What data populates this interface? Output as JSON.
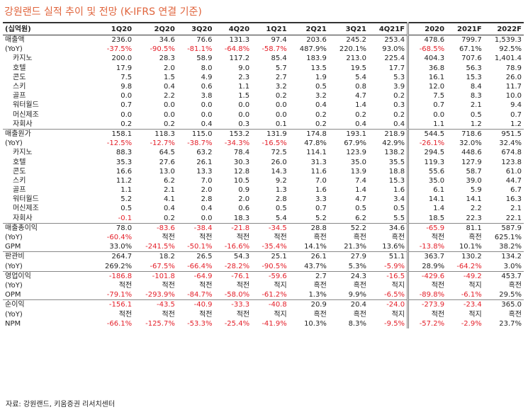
{
  "header": {
    "title": "강원랜드 실적 추이 및 전망 (K-IFRS 연결 기준)"
  },
  "table": {
    "columns": [
      "(십억원)",
      "1Q20",
      "2Q20",
      "3Q20",
      "4Q20",
      "1Q21",
      "2Q21",
      "3Q21",
      "4Q21F",
      "2020",
      "2021F",
      "2022F"
    ],
    "sections": [
      [
        [
          "매출액",
          "236.0",
          "34.6",
          "76.6",
          "131.3",
          "97.4",
          "203.6",
          "245.2",
          "253.4",
          "478.6",
          "799.7",
          "1,539.3"
        ],
        [
          "(YoY)",
          "-37.5%",
          "-90.5%",
          "-81.1%",
          "-64.8%",
          "-58.7%",
          "487.9%",
          "220.1%",
          "93.0%",
          "-68.5%",
          "67.1%",
          "92.5%"
        ],
        [
          "카지노",
          "200.0",
          "28.3",
          "58.9",
          "117.2",
          "85.4",
          "183.9",
          "213.0",
          "225.4",
          "404.3",
          "707.6",
          "1,401.4"
        ],
        [
          "호텔",
          "17.9",
          "2.0",
          "8.0",
          "9.0",
          "5.7",
          "13.5",
          "19.5",
          "17.7",
          "36.8",
          "56.3",
          "78.9"
        ],
        [
          "콘도",
          "7.5",
          "1.5",
          "4.9",
          "2.3",
          "2.7",
          "1.9",
          "5.4",
          "5.3",
          "16.1",
          "15.3",
          "26.0"
        ],
        [
          "스키",
          "9.8",
          "0.4",
          "0.6",
          "1.1",
          "3.2",
          "0.5",
          "0.8",
          "3.9",
          "12.0",
          "8.4",
          "11.7"
        ],
        [
          "골프",
          "0.0",
          "2.2",
          "3.8",
          "1.5",
          "0.2",
          "3.2",
          "4.7",
          "0.2",
          "7.5",
          "8.3",
          "10.0"
        ],
        [
          "워터월드",
          "0.7",
          "0.0",
          "0.0",
          "0.0",
          "0.0",
          "0.4",
          "1.4",
          "0.3",
          "0.7",
          "2.1",
          "9.4"
        ],
        [
          "머신제조",
          "0.0",
          "0.0",
          "0.0",
          "0.0",
          "0.0",
          "0.2",
          "0.2",
          "0.2",
          "0.0",
          "0.5",
          "0.7"
        ],
        [
          "자회사",
          "0.2",
          "0.2",
          "0.4",
          "0.3",
          "0.1",
          "0.2",
          "0.4",
          "0.4",
          "1.1",
          "1.2",
          "1.2"
        ]
      ],
      [
        [
          "매출원가",
          "158.1",
          "118.3",
          "115.0",
          "153.2",
          "131.9",
          "174.8",
          "193.1",
          "218.9",
          "544.5",
          "718.6",
          "951.5"
        ],
        [
          "(YoY)",
          "-12.5%",
          "-12.7%",
          "-38.7%",
          "-34.3%",
          "-16.5%",
          "47.8%",
          "67.9%",
          "42.9%",
          "-26.1%",
          "32.0%",
          "32.4%"
        ],
        [
          "카지노",
          "88.3",
          "64.5",
          "63.2",
          "78.4",
          "72.5",
          "114.1",
          "123.9",
          "138.2",
          "294.5",
          "448.6",
          "674.8"
        ],
        [
          "호텔",
          "35.3",
          "27.6",
          "26.1",
          "30.3",
          "26.0",
          "31.3",
          "35.0",
          "35.5",
          "119.3",
          "127.9",
          "123.8"
        ],
        [
          "콘도",
          "16.6",
          "13.0",
          "13.3",
          "12.8",
          "14.3",
          "11.6",
          "13.9",
          "18.8",
          "55.6",
          "58.7",
          "61.0"
        ],
        [
          "스키",
          "11.2",
          "6.2",
          "7.0",
          "10.5",
          "9.2",
          "7.0",
          "7.4",
          "15.3",
          "35.0",
          "39.0",
          "44.7"
        ],
        [
          "골프",
          "1.1",
          "2.1",
          "2.0",
          "0.9",
          "1.3",
          "1.6",
          "1.4",
          "1.6",
          "6.1",
          "5.9",
          "6.7"
        ],
        [
          "워터월드",
          "5.2",
          "4.1",
          "2.8",
          "2.0",
          "2.8",
          "3.3",
          "4.7",
          "3.4",
          "14.1",
          "14.1",
          "16.3"
        ],
        [
          "머신제조",
          "0.5",
          "0.4",
          "0.4",
          "0.6",
          "0.5",
          "0.7",
          "0.5",
          "0.5",
          "1.4",
          "2.2",
          "2.1"
        ],
        [
          "자회사",
          "-0.1",
          "0.2",
          "0.0",
          "18.3",
          "5.4",
          "5.2",
          "6.2",
          "5.5",
          "18.5",
          "22.3",
          "22.1"
        ]
      ],
      [
        [
          "매출총이익",
          "78.0",
          "-83.6",
          "-38.4",
          "-21.8",
          "-34.5",
          "28.8",
          "52.2",
          "34.6",
          "-65.9",
          "81.1",
          "587.9"
        ],
        [
          "(YoY)",
          "-60.4%",
          "적전",
          "적전",
          "적전",
          "적전",
          "흑전",
          "흑전",
          "흑전",
          "적전",
          "흑전",
          "625.1%"
        ],
        [
          "GPM",
          "33.0%",
          "-241.5%",
          "-50.1%",
          "-16.6%",
          "-35.4%",
          "14.1%",
          "21.3%",
          "13.6%",
          "-13.8%",
          "10.1%",
          "38.2%"
        ]
      ],
      [
        [
          "판관비",
          "264.7",
          "18.2",
          "26.5",
          "54.3",
          "25.1",
          "26.1",
          "27.9",
          "51.1",
          "363.7",
          "130.2",
          "134.2"
        ],
        [
          "(YoY)",
          "269.2%",
          "-67.5%",
          "-66.4%",
          "-28.2%",
          "-90.5%",
          "43.7%",
          "5.3%",
          "-5.9%",
          "28.9%",
          "-64.2%",
          "3.0%"
        ]
      ],
      [
        [
          "영업이익",
          "-186.8",
          "-101.8",
          "-64.9",
          "-76.1",
          "-59.6",
          "2.7",
          "24.3",
          "-16.5",
          "-429.6",
          "-49.2",
          "453.7"
        ],
        [
          "(YoY)",
          "적전",
          "적전",
          "적전",
          "적전",
          "적지",
          "흑전",
          "흑전",
          "적지",
          "적전",
          "적지",
          "흑전"
        ],
        [
          "OPM",
          "-79.1%",
          "-293.9%",
          "-84.7%",
          "-58.0%",
          "-61.2%",
          "1.3%",
          "9.9%",
          "-6.5%",
          "-89.8%",
          "-6.1%",
          "29.5%"
        ]
      ],
      [
        [
          "순이익",
          "-156.1",
          "-43.5",
          "-40.9",
          "-33.3",
          "-40.8",
          "20.9",
          "20.4",
          "-24.0",
          "-273.9",
          "-23.4",
          "365.0"
        ],
        [
          "(YoY)",
          "적전",
          "적전",
          "적전",
          "적전",
          "적지",
          "흑전",
          "흑전",
          "적지",
          "적전",
          "적지",
          "흑전"
        ],
        [
          "NPM",
          "-66.1%",
          "-125.7%",
          "-53.3%",
          "-25.4%",
          "-41.9%",
          "10.3%",
          "8.3%",
          "-9.5%",
          "-57.2%",
          "-2.9%",
          "23.7%"
        ]
      ]
    ]
  },
  "footer": {
    "source": "자료: 강원랜드, 키움증권 리서치센터"
  }
}
